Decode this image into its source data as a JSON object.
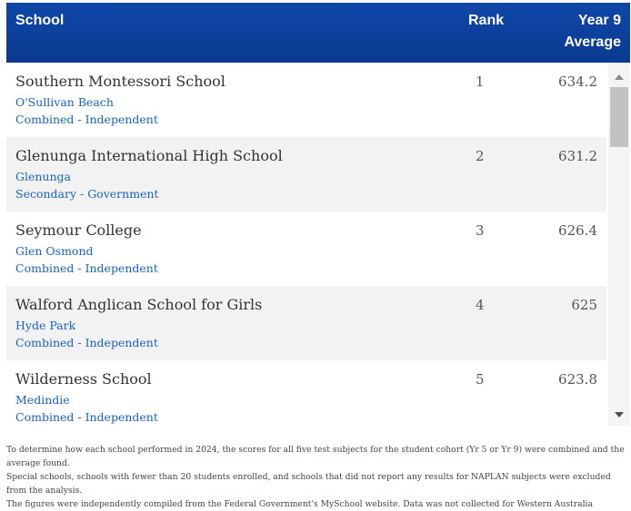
{
  "header": {
    "school": "School",
    "rank": "Rank",
    "avg_line1": "Year 9",
    "avg_line2": "Average"
  },
  "rows": [
    {
      "name": "Southern Montessori School",
      "suburb": "O'Sullivan Beach",
      "type": "Combined - Independent",
      "rank": "1",
      "average": "634.2"
    },
    {
      "name": "Glenunga International High School",
      "suburb": "Glenunga",
      "type": "Secondary - Government",
      "rank": "2",
      "average": "631.2"
    },
    {
      "name": "Seymour College",
      "suburb": "Glen Osmond",
      "type": "Combined - Independent",
      "rank": "3",
      "average": "626.4"
    },
    {
      "name": "Walford Anglican School for Girls",
      "suburb": "Hyde Park",
      "type": "Combined - Independent",
      "rank": "4",
      "average": "625"
    },
    {
      "name": "Wilderness School",
      "suburb": "Medindie",
      "type": "Combined - Independent",
      "rank": "5",
      "average": "623.8"
    }
  ],
  "footnote": {
    "line1": "To determine how each school performed in 2024, the scores for all five test subjects for the student cohort (Yr 5 or Yr 9) were combined and the average found.",
    "line2": "Special schools, schools with fewer than 20 students enrolled, and schools that did not report any results for NAPLAN subjects were excluded from the analysis.",
    "line3": "The figures were independently compiled from the Federal Government's MySchool website. Data was not collected for Western Australia"
  },
  "colors": {
    "header_bg": "#0f47a8",
    "link": "#1a63c4",
    "row_alt": "#f2f2f2"
  },
  "icons": {
    "scroll_up": "triangle-up-icon",
    "scroll_down": "triangle-down-icon"
  }
}
